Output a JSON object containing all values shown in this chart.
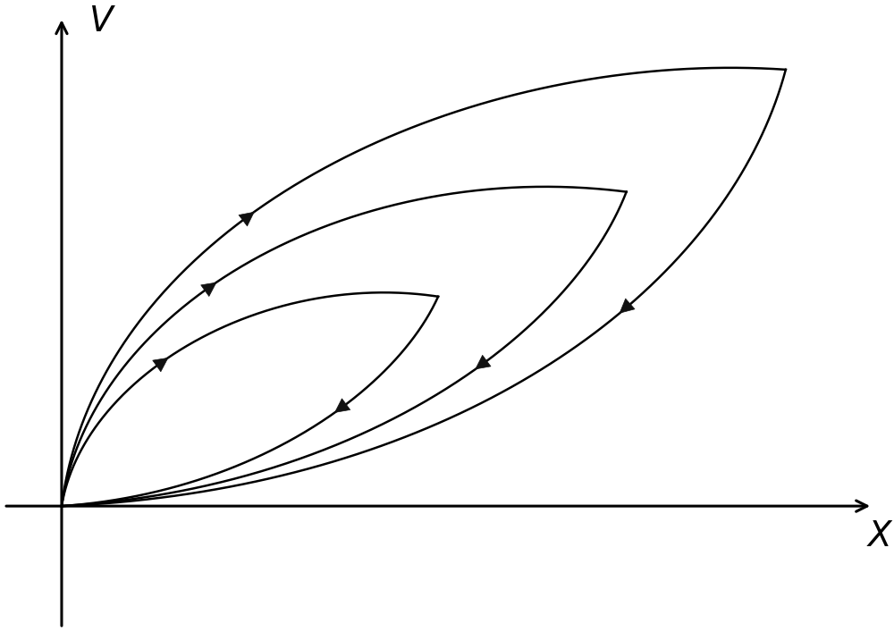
{
  "background_color": "#ffffff",
  "axis_color": "#000000",
  "curve_color": "#000000",
  "curve_linewidth": 1.8,
  "arrow_color": "#111111",
  "x_label": "X",
  "y_label": "V",
  "xlim": [
    -0.08,
    1.12
  ],
  "ylim": [
    -0.28,
    1.12
  ],
  "figsize": [
    10.0,
    7.07
  ],
  "dpi": 100,
  "curves": [
    {
      "name": "outer_upper",
      "x_start": 0.0,
      "y_start": 0.0,
      "x_end": 1.0,
      "y_end": 1.0,
      "ctrl1_x": 0.05,
      "ctrl1_y": 0.65,
      "ctrl2_x": 0.55,
      "ctrl2_y": 1.05,
      "arrow_t": 0.4
    },
    {
      "name": "outer_lower",
      "x_start": 1.0,
      "y_start": 1.0,
      "x_end": 0.0,
      "y_end": 0.0,
      "ctrl1_x": 0.92,
      "ctrl1_y": 0.5,
      "ctrl2_x": 0.55,
      "ctrl2_y": 0.04,
      "arrow_t": 0.38
    },
    {
      "name": "mid_upper",
      "x_start": 0.0,
      "y_start": 0.0,
      "x_end": 0.78,
      "y_end": 0.72,
      "ctrl1_x": 0.04,
      "ctrl1_y": 0.46,
      "ctrl2_x": 0.4,
      "ctrl2_y": 0.8,
      "arrow_t": 0.42
    },
    {
      "name": "mid_lower",
      "x_start": 0.78,
      "y_start": 0.72,
      "x_end": 0.0,
      "y_end": 0.0,
      "ctrl1_x": 0.7,
      "ctrl1_y": 0.38,
      "ctrl2_x": 0.4,
      "ctrl2_y": 0.04,
      "arrow_t": 0.4
    },
    {
      "name": "inner_upper",
      "x_start": 0.0,
      "y_start": 0.0,
      "x_end": 0.52,
      "y_end": 0.48,
      "ctrl1_x": 0.03,
      "ctrl1_y": 0.3,
      "ctrl2_x": 0.28,
      "ctrl2_y": 0.54,
      "arrow_t": 0.42
    },
    {
      "name": "inner_lower",
      "x_start": 0.52,
      "y_start": 0.48,
      "x_end": 0.0,
      "y_end": 0.0,
      "ctrl1_x": 0.46,
      "ctrl1_y": 0.26,
      "ctrl2_x": 0.26,
      "ctrl2_y": 0.03,
      "arrow_t": 0.4
    }
  ]
}
